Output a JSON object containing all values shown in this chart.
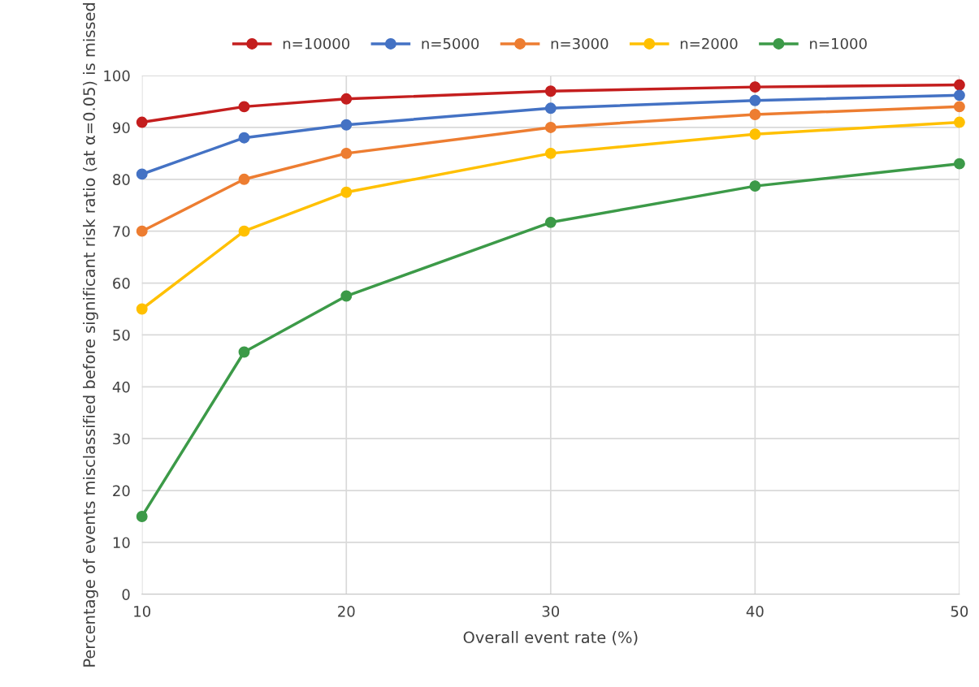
{
  "chart_data": {
    "type": "line",
    "xlabel": "Overall event rate (%)",
    "ylabel": "Percentage of events misclassified before significant risk ratio (at α=0.05) is missed",
    "x": [
      10,
      15,
      20,
      30,
      40,
      50
    ],
    "series": [
      {
        "name": "n=10000",
        "color": "#c41e1e",
        "values": [
          91,
          94,
          95.5,
          97,
          97.8,
          98.2
        ]
      },
      {
        "name": "n=5000",
        "color": "#4472c4",
        "values": [
          81,
          88,
          90.5,
          93.7,
          95.2,
          96.2
        ]
      },
      {
        "name": "n=3000",
        "color": "#ed7d31",
        "values": [
          70,
          80,
          85,
          90,
          92.5,
          94
        ]
      },
      {
        "name": "n=2000",
        "color": "#ffc000",
        "values": [
          55,
          70,
          77.5,
          85,
          88.7,
          91
        ]
      },
      {
        "name": "n=1000",
        "color": "#3c9a48",
        "values": [
          15,
          46.7,
          57.5,
          71.7,
          78.7,
          83
        ]
      }
    ],
    "xlim": [
      10,
      50
    ],
    "xticks": [
      10,
      20,
      30,
      40,
      50
    ],
    "ylim": [
      0,
      100
    ],
    "yticks": [
      0,
      10,
      20,
      30,
      40,
      50,
      60,
      70,
      80,
      90,
      100
    ],
    "grid": true,
    "legend": "top",
    "marker": "circle",
    "line_style": "solid"
  }
}
